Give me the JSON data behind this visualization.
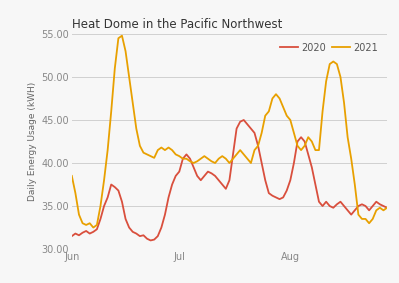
{
  "title": "Heat Dome in the Pacific Northwest",
  "ylabel": "Daily Energy Usage (kWH)",
  "ylim": [
    30.0,
    55.0
  ],
  "yticks": [
    30.0,
    35.0,
    40.0,
    45.0,
    50.0,
    55.0
  ],
  "color_2020": "#d94f3d",
  "color_2021": "#e8a000",
  "legend_labels": [
    "2020",
    "2021"
  ],
  "series_2020": [
    31.5,
    31.8,
    31.6,
    31.9,
    32.1,
    31.8,
    32.0,
    32.3,
    33.5,
    35.0,
    36.0,
    37.5,
    37.2,
    36.8,
    35.5,
    33.5,
    32.5,
    32.0,
    31.8,
    31.5,
    31.6,
    31.2,
    31.0,
    31.1,
    31.5,
    32.5,
    34.0,
    36.0,
    37.5,
    38.5,
    39.0,
    40.5,
    41.0,
    40.5,
    39.5,
    38.5,
    38.0,
    38.5,
    39.0,
    38.8,
    38.5,
    38.0,
    37.5,
    37.0,
    38.0,
    41.0,
    44.0,
    44.8,
    45.0,
    44.5,
    44.0,
    43.5,
    42.0,
    40.0,
    38.0,
    36.5,
    36.2,
    36.0,
    35.8,
    36.0,
    36.8,
    38.0,
    40.0,
    42.5,
    43.0,
    42.5,
    41.0,
    39.5,
    37.5,
    35.5,
    35.0,
    35.5,
    35.0,
    34.8,
    35.2,
    35.5,
    35.0,
    34.5,
    34.0,
    34.5,
    35.0,
    35.2,
    35.0,
    34.5,
    35.0,
    35.5,
    35.2,
    35.0,
    34.8
  ],
  "series_2021": [
    38.5,
    36.5,
    34.0,
    33.0,
    32.8,
    33.0,
    32.5,
    32.8,
    35.0,
    38.0,
    41.5,
    46.0,
    51.0,
    54.5,
    54.8,
    53.0,
    50.0,
    47.0,
    44.0,
    42.0,
    41.2,
    41.0,
    40.8,
    40.6,
    41.5,
    41.8,
    41.5,
    41.8,
    41.5,
    41.0,
    40.8,
    40.5,
    40.5,
    40.2,
    40.0,
    40.2,
    40.5,
    40.8,
    40.5,
    40.2,
    40.0,
    40.5,
    40.8,
    40.5,
    40.0,
    40.5,
    41.0,
    41.5,
    41.0,
    40.5,
    40.0,
    41.5,
    42.0,
    43.5,
    45.5,
    46.0,
    47.5,
    48.0,
    47.5,
    46.5,
    45.5,
    45.0,
    43.5,
    42.0,
    41.5,
    42.0,
    43.0,
    42.5,
    41.5,
    41.5,
    46.0,
    49.5,
    51.5,
    51.8,
    51.5,
    50.0,
    47.0,
    43.0,
    40.5,
    37.5,
    34.0,
    33.5,
    33.5,
    33.0,
    33.5,
    34.5,
    34.8,
    34.5,
    34.8
  ],
  "xtick_positions": [
    0,
    30,
    61
  ],
  "xtick_labels": [
    "Jun",
    "Jul",
    "Aug"
  ],
  "background_color": "#f7f7f7",
  "grid_color": "#d0d0d0"
}
